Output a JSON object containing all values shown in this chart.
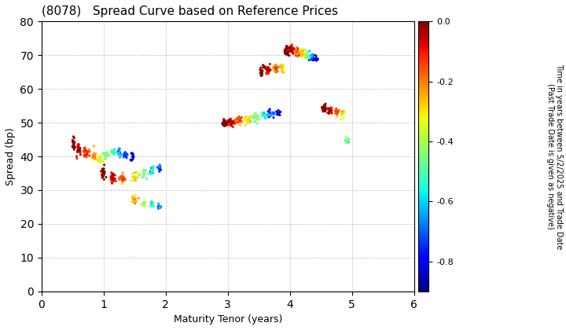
{
  "title": "(8078)   Spread Curve based on Reference Prices",
  "xlabel": "Maturity Tenor (years)",
  "ylabel": "Spread (bp)",
  "colorbar_label_line1": "Time in years between 5/2/2025 and Trade Date",
  "colorbar_label_line2": "(Past Trade Date is given as negative)",
  "xlim": [
    0,
    6
  ],
  "ylim": [
    0,
    80
  ],
  "xticks": [
    0,
    1,
    2,
    3,
    4,
    5,
    6
  ],
  "yticks": [
    0,
    10,
    20,
    30,
    40,
    50,
    60,
    70,
    80
  ],
  "cmap": "jet",
  "vmin": -0.9,
  "vmax": 0.0,
  "clusters": [
    {
      "x_center": 0.52,
      "y_center": 44,
      "spread_x": 0.03,
      "spread_y": 2.5,
      "n_points": 20,
      "t_range": [
        -0.03,
        0.0
      ]
    },
    {
      "x_center": 0.6,
      "y_center": 42,
      "spread_x": 0.05,
      "spread_y": 2.5,
      "n_points": 30,
      "t_range": [
        -0.12,
        -0.02
      ]
    },
    {
      "x_center": 0.72,
      "y_center": 41,
      "spread_x": 0.06,
      "spread_y": 2.0,
      "n_points": 35,
      "t_range": [
        -0.22,
        -0.1
      ]
    },
    {
      "x_center": 0.85,
      "y_center": 40,
      "spread_x": 0.05,
      "spread_y": 2.0,
      "n_points": 25,
      "t_range": [
        -0.32,
        -0.2
      ]
    },
    {
      "x_center": 0.95,
      "y_center": 39,
      "spread_x": 0.04,
      "spread_y": 1.5,
      "n_points": 20,
      "t_range": [
        -0.42,
        -0.3
      ]
    },
    {
      "x_center": 1.05,
      "y_center": 40.5,
      "spread_x": 0.05,
      "spread_y": 1.5,
      "n_points": 25,
      "t_range": [
        -0.52,
        -0.4
      ]
    },
    {
      "x_center": 1.15,
      "y_center": 41.5,
      "spread_x": 0.05,
      "spread_y": 1.5,
      "n_points": 20,
      "t_range": [
        -0.62,
        -0.5
      ]
    },
    {
      "x_center": 1.25,
      "y_center": 41,
      "spread_x": 0.05,
      "spread_y": 1.5,
      "n_points": 18,
      "t_range": [
        -0.72,
        -0.6
      ]
    },
    {
      "x_center": 1.35,
      "y_center": 40.5,
      "spread_x": 0.04,
      "spread_y": 1.5,
      "n_points": 15,
      "t_range": [
        -0.82,
        -0.7
      ]
    },
    {
      "x_center": 1.45,
      "y_center": 40,
      "spread_x": 0.04,
      "spread_y": 1.5,
      "n_points": 12,
      "t_range": [
        -0.9,
        -0.8
      ]
    },
    {
      "x_center": 1.0,
      "y_center": 35,
      "spread_x": 0.05,
      "spread_y": 2.0,
      "n_points": 25,
      "t_range": [
        -0.03,
        0.0
      ]
    },
    {
      "x_center": 1.15,
      "y_center": 34,
      "spread_x": 0.06,
      "spread_y": 2.0,
      "n_points": 30,
      "t_range": [
        -0.15,
        -0.02
      ]
    },
    {
      "x_center": 1.3,
      "y_center": 33.5,
      "spread_x": 0.06,
      "spread_y": 1.8,
      "n_points": 25,
      "t_range": [
        -0.28,
        -0.12
      ]
    },
    {
      "x_center": 1.5,
      "y_center": 34,
      "spread_x": 0.07,
      "spread_y": 1.8,
      "n_points": 22,
      "t_range": [
        -0.42,
        -0.25
      ]
    },
    {
      "x_center": 1.65,
      "y_center": 35,
      "spread_x": 0.06,
      "spread_y": 1.5,
      "n_points": 18,
      "t_range": [
        -0.55,
        -0.4
      ]
    },
    {
      "x_center": 1.78,
      "y_center": 36,
      "spread_x": 0.06,
      "spread_y": 1.5,
      "n_points": 16,
      "t_range": [
        -0.68,
        -0.52
      ]
    },
    {
      "x_center": 1.9,
      "y_center": 36.5,
      "spread_x": 0.05,
      "spread_y": 1.5,
      "n_points": 14,
      "t_range": [
        -0.82,
        -0.65
      ]
    },
    {
      "x_center": 1.5,
      "y_center": 27,
      "spread_x": 0.06,
      "spread_y": 1.5,
      "n_points": 18,
      "t_range": [
        -0.35,
        -0.2
      ]
    },
    {
      "x_center": 1.65,
      "y_center": 26,
      "spread_x": 0.06,
      "spread_y": 1.2,
      "n_points": 15,
      "t_range": [
        -0.5,
        -0.35
      ]
    },
    {
      "x_center": 1.78,
      "y_center": 25.5,
      "spread_x": 0.05,
      "spread_y": 1.2,
      "n_points": 12,
      "t_range": [
        -0.65,
        -0.48
      ]
    },
    {
      "x_center": 1.9,
      "y_center": 25,
      "spread_x": 0.04,
      "spread_y": 1.0,
      "n_points": 10,
      "t_range": [
        -0.75,
        -0.62
      ]
    },
    {
      "x_center": 2.95,
      "y_center": 49.5,
      "spread_x": 0.06,
      "spread_y": 1.5,
      "n_points": 25,
      "t_range": [
        -0.03,
        0.0
      ]
    },
    {
      "x_center": 3.05,
      "y_center": 50,
      "spread_x": 0.07,
      "spread_y": 1.5,
      "n_points": 30,
      "t_range": [
        -0.15,
        -0.02
      ]
    },
    {
      "x_center": 3.18,
      "y_center": 50.5,
      "spread_x": 0.07,
      "spread_y": 1.5,
      "n_points": 28,
      "t_range": [
        -0.28,
        -0.12
      ]
    },
    {
      "x_center": 3.32,
      "y_center": 51,
      "spread_x": 0.07,
      "spread_y": 1.5,
      "n_points": 25,
      "t_range": [
        -0.42,
        -0.25
      ]
    },
    {
      "x_center": 3.45,
      "y_center": 51.5,
      "spread_x": 0.07,
      "spread_y": 1.5,
      "n_points": 22,
      "t_range": [
        -0.55,
        -0.4
      ]
    },
    {
      "x_center": 3.58,
      "y_center": 52,
      "spread_x": 0.06,
      "spread_y": 1.5,
      "n_points": 18,
      "t_range": [
        -0.68,
        -0.52
      ]
    },
    {
      "x_center": 3.7,
      "y_center": 52.5,
      "spread_x": 0.06,
      "spread_y": 1.5,
      "n_points": 15,
      "t_range": [
        -0.82,
        -0.65
      ]
    },
    {
      "x_center": 3.82,
      "y_center": 53,
      "spread_x": 0.05,
      "spread_y": 1.2,
      "n_points": 12,
      "t_range": [
        -0.9,
        -0.8
      ]
    },
    {
      "x_center": 3.55,
      "y_center": 65,
      "spread_x": 0.05,
      "spread_y": 2.0,
      "n_points": 20,
      "t_range": [
        -0.03,
        0.0
      ]
    },
    {
      "x_center": 3.65,
      "y_center": 65.5,
      "spread_x": 0.06,
      "spread_y": 2.0,
      "n_points": 22,
      "t_range": [
        -0.15,
        -0.02
      ]
    },
    {
      "x_center": 3.78,
      "y_center": 66,
      "spread_x": 0.06,
      "spread_y": 2.0,
      "n_points": 20,
      "t_range": [
        -0.28,
        -0.12
      ]
    },
    {
      "x_center": 3.88,
      "y_center": 66.5,
      "spread_x": 0.05,
      "spread_y": 1.5,
      "n_points": 16,
      "t_range": [
        -0.42,
        -0.25
      ]
    },
    {
      "x_center": 3.95,
      "y_center": 71,
      "spread_x": 0.05,
      "spread_y": 2.0,
      "n_points": 22,
      "t_range": [
        -0.03,
        0.0
      ]
    },
    {
      "x_center": 4.02,
      "y_center": 71.5,
      "spread_x": 0.06,
      "spread_y": 2.0,
      "n_points": 25,
      "t_range": [
        -0.15,
        -0.02
      ]
    },
    {
      "x_center": 4.12,
      "y_center": 71,
      "spread_x": 0.05,
      "spread_y": 1.8,
      "n_points": 20,
      "t_range": [
        -0.28,
        -0.12
      ]
    },
    {
      "x_center": 4.2,
      "y_center": 70.5,
      "spread_x": 0.05,
      "spread_y": 1.8,
      "n_points": 18,
      "t_range": [
        -0.42,
        -0.25
      ]
    },
    {
      "x_center": 4.28,
      "y_center": 70,
      "spread_x": 0.05,
      "spread_y": 1.8,
      "n_points": 16,
      "t_range": [
        -0.62,
        -0.4
      ]
    },
    {
      "x_center": 4.35,
      "y_center": 69.5,
      "spread_x": 0.04,
      "spread_y": 1.5,
      "n_points": 14,
      "t_range": [
        -0.82,
        -0.6
      ]
    },
    {
      "x_center": 4.42,
      "y_center": 69,
      "spread_x": 0.04,
      "spread_y": 1.5,
      "n_points": 12,
      "t_range": [
        -0.9,
        -0.8
      ]
    },
    {
      "x_center": 4.55,
      "y_center": 54,
      "spread_x": 0.05,
      "spread_y": 1.5,
      "n_points": 22,
      "t_range": [
        -0.03,
        0.0
      ]
    },
    {
      "x_center": 4.65,
      "y_center": 53.5,
      "spread_x": 0.05,
      "spread_y": 1.5,
      "n_points": 20,
      "t_range": [
        -0.15,
        -0.02
      ]
    },
    {
      "x_center": 4.75,
      "y_center": 53,
      "spread_x": 0.05,
      "spread_y": 1.5,
      "n_points": 18,
      "t_range": [
        -0.28,
        -0.12
      ]
    },
    {
      "x_center": 4.85,
      "y_center": 52.5,
      "spread_x": 0.04,
      "spread_y": 1.5,
      "n_points": 15,
      "t_range": [
        -0.42,
        -0.25
      ]
    },
    {
      "x_center": 4.92,
      "y_center": 45,
      "spread_x": 0.04,
      "spread_y": 1.5,
      "n_points": 15,
      "t_range": [
        -0.62,
        -0.4
      ]
    }
  ],
  "background_color": "#ffffff",
  "grid_color": "#aaaaaa",
  "point_size": 5
}
